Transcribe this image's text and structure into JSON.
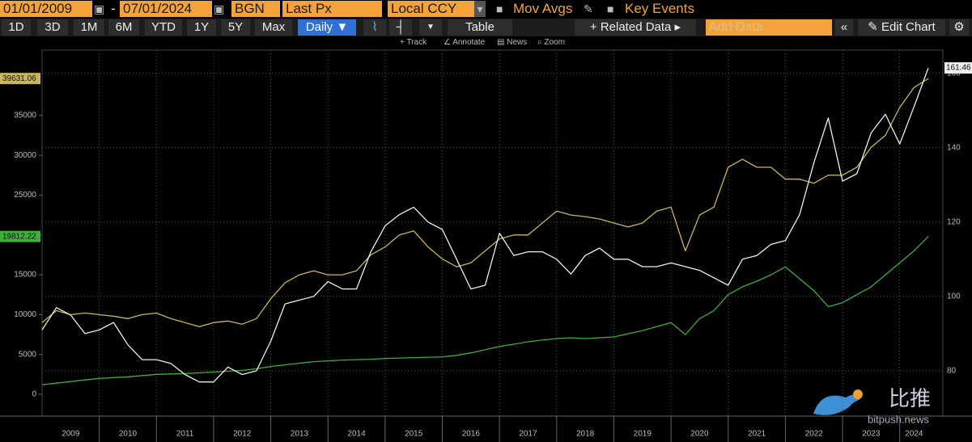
{
  "toolbar": {
    "start_date": "01/01/2009",
    "separator": "-",
    "end_date": "07/01/2024",
    "source": "BGN",
    "field": "Last Px",
    "currency": "Local CCY",
    "mov_avgs": "Mov Avgs",
    "key_events": "Key Events",
    "periods": [
      "1D",
      "3D",
      "1M",
      "6M",
      "YTD",
      "1Y",
      "5Y",
      "Max"
    ],
    "frequency": "Daily ▼",
    "table": "Table",
    "related_data": "+ Related Data ▸",
    "add_data": "Add Data",
    "collapse": "«",
    "edit_chart": "Edit Chart",
    "tools": [
      "Track",
      "Annotate",
      "News",
      "Zoom"
    ]
  },
  "watermark": {
    "brand": "比推",
    "site": "bitpush.news"
  },
  "chart_data": {
    "type": "line",
    "x": [
      2009,
      2009.25,
      2009.5,
      2009.75,
      2010,
      2010.25,
      2010.5,
      2010.75,
      2011,
      2011.25,
      2011.5,
      2011.75,
      2012,
      2012.25,
      2012.5,
      2012.75,
      2013,
      2013.25,
      2013.5,
      2013.75,
      2014,
      2014.25,
      2014.5,
      2014.75,
      2015,
      2015.25,
      2015.5,
      2015.75,
      2016,
      2016.25,
      2016.5,
      2016.75,
      2017,
      2017.25,
      2017.5,
      2017.75,
      2018,
      2018.25,
      2018.5,
      2018.75,
      2019,
      2019.25,
      2019.5,
      2019.75,
      2020,
      2020.25,
      2020.5,
      2020.75,
      2021,
      2021.25,
      2021.5,
      2021.75,
      2022,
      2022.25,
      2022.5,
      2022.75,
      2023,
      2023.25,
      2023.5,
      2023.75,
      2024,
      2024.25,
      2024.5
    ],
    "xlim": [
      2009,
      2024.5
    ],
    "xticks": [
      {
        "value": 2009.5,
        "label": "2009"
      },
      {
        "value": 2010.5,
        "label": "2010"
      },
      {
        "value": 2011.5,
        "label": "2011"
      },
      {
        "value": 2012.5,
        "label": "2012"
      },
      {
        "value": 2013.5,
        "label": "2013"
      },
      {
        "value": 2014.5,
        "label": "2014"
      },
      {
        "value": 2015.5,
        "label": "2015"
      },
      {
        "value": 2016.5,
        "label": "2016"
      },
      {
        "value": 2017.5,
        "label": "2017"
      },
      {
        "value": 2018.5,
        "label": "2018"
      },
      {
        "value": 2019.5,
        "label": "2019"
      },
      {
        "value": 2020.5,
        "label": "2020"
      },
      {
        "value": 2021.5,
        "label": "2021"
      },
      {
        "value": 2022.5,
        "label": "2022"
      },
      {
        "value": 2023.5,
        "label": "2023"
      },
      {
        "value": 2024.25,
        "label": "2024"
      }
    ],
    "xgrid": [
      2010,
      2011,
      2012,
      2013,
      2014,
      2015,
      2016,
      2017,
      2018,
      2019,
      2020,
      2021,
      2022,
      2023,
      2024
    ],
    "ylim": [
      -2740,
      44620
    ],
    "yticks": [
      0,
      5000,
      10000,
      15000,
      20000,
      25000,
      30000,
      35000
    ],
    "y2lim": [
      67.8,
      169.3
    ],
    "y2ticks": [
      80,
      100,
      120,
      140,
      160
    ],
    "grid": "y2",
    "series": [
      {
        "color": "#c9b55c",
        "values": [
          9000,
          10500,
          10000,
          10200,
          10000,
          9800,
          9500,
          10000,
          10200,
          9500,
          9000,
          8500,
          9000,
          9200,
          8800,
          9500,
          12000,
          14000,
          15000,
          15500,
          15000,
          15000,
          15500,
          17500,
          18500,
          20000,
          20500,
          18500,
          17000,
          16000,
          16500,
          18000,
          19500,
          20000,
          20000,
          21500,
          23000,
          22500,
          22300,
          22000,
          21500,
          21000,
          21500,
          23000,
          23500,
          18000,
          22500,
          23500,
          28500,
          29500,
          28500,
          28500,
          27000,
          27000,
          26500,
          27500,
          27500,
          28500,
          31000,
          32500,
          36000,
          38500,
          39631.06
        ]
      },
      {
        "color": "#3fae3a",
        "values": [
          1200,
          1400,
          1600,
          1800,
          2000,
          2100,
          2200,
          2350,
          2500,
          2550,
          2600,
          2700,
          2800,
          2900,
          3000,
          3200,
          3500,
          3700,
          3900,
          4100,
          4200,
          4300,
          4350,
          4400,
          4500,
          4550,
          4600,
          4650,
          4700,
          4900,
          5200,
          5600,
          6000,
          6300,
          6600,
          6800,
          7000,
          7100,
          7000,
          7100,
          7200,
          7600,
          8000,
          8500,
          9000,
          7500,
          9500,
          10500,
          12500,
          13500,
          14200,
          15000,
          16000,
          14500,
          13000,
          11000,
          11500,
          12500,
          13500,
          15000,
          16500,
          18000,
          19812.22
        ]
      },
      {
        "color": "#eeeeee",
        "axis": "y2",
        "values": [
          91,
          97,
          95,
          90,
          91,
          93,
          87,
          83,
          83,
          82,
          79,
          77,
          77,
          81,
          79,
          80,
          88,
          98,
          99,
          100,
          104,
          102,
          102,
          112,
          119,
          122,
          124,
          120,
          118,
          110,
          102,
          103,
          117,
          111,
          112,
          112,
          110,
          106,
          111,
          113,
          110,
          110,
          108,
          108,
          109,
          108,
          107,
          105,
          103,
          110,
          111,
          114,
          115,
          122,
          136,
          148,
          131,
          133,
          144,
          149,
          141,
          151,
          161.46
        ]
      }
    ]
  }
}
